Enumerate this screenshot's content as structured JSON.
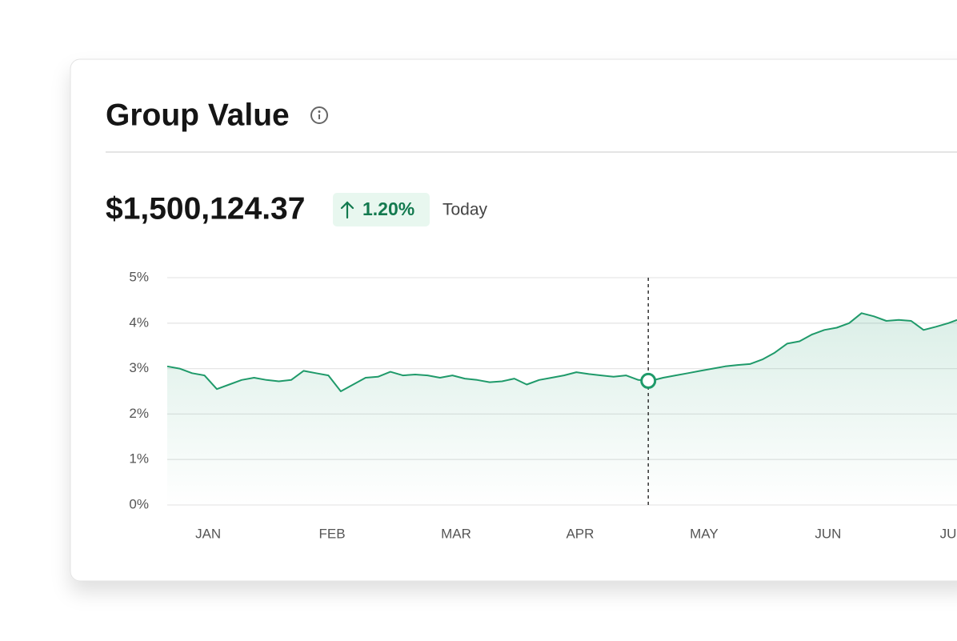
{
  "card": {
    "title": "Group Value",
    "value": "$1,500,124.37",
    "change": "1.20%",
    "period": "Today"
  },
  "chart_data": {
    "type": "area",
    "color": "#1f9a6a",
    "grid": true,
    "x": [
      0.67,
      0.77,
      0.87,
      0.97,
      1.07,
      1.17,
      1.27,
      1.37,
      1.47,
      1.57,
      1.67,
      1.77,
      1.87,
      1.97,
      2.07,
      2.17,
      2.27,
      2.37,
      2.47,
      2.57,
      2.67,
      2.77,
      2.87,
      2.97,
      3.07,
      3.17,
      3.27,
      3.37,
      3.47,
      3.57,
      3.67,
      3.77,
      3.87,
      3.97,
      4.07,
      4.17,
      4.27,
      4.37,
      4.47,
      4.57,
      4.67,
      4.77,
      4.87,
      4.97,
      5.07,
      5.17,
      5.27,
      5.37,
      5.47,
      5.57,
      5.67,
      5.77,
      5.87,
      5.97,
      6.07,
      6.17,
      6.27,
      6.37,
      6.47,
      6.57,
      6.67,
      6.77,
      6.87,
      6.97,
      7.04
    ],
    "values": [
      3.05,
      3.0,
      2.9,
      2.85,
      2.55,
      2.65,
      2.75,
      2.8,
      2.75,
      2.72,
      2.75,
      2.95,
      2.9,
      2.85,
      2.5,
      2.65,
      2.8,
      2.82,
      2.93,
      2.85,
      2.87,
      2.85,
      2.8,
      2.85,
      2.78,
      2.75,
      2.7,
      2.72,
      2.78,
      2.65,
      2.75,
      2.8,
      2.85,
      2.92,
      2.88,
      2.85,
      2.82,
      2.85,
      2.75,
      2.73,
      2.8,
      2.85,
      2.9,
      2.95,
      3.0,
      3.05,
      3.08,
      3.1,
      3.2,
      3.35,
      3.55,
      3.6,
      3.75,
      3.85,
      3.9,
      4.0,
      4.22,
      4.15,
      4.05,
      4.07,
      4.05,
      3.85,
      3.92,
      4.0,
      4.07
    ],
    "highlight": {
      "x": 4.55,
      "value": 2.73
    },
    "xlim": [
      0.67,
      7.04
    ],
    "ylim": [
      0,
      5
    ],
    "xticks": [
      {
        "value": 1,
        "label": "JAN"
      },
      {
        "value": 2,
        "label": "FEB"
      },
      {
        "value": 3,
        "label": "MAR"
      },
      {
        "value": 4,
        "label": "APR"
      },
      {
        "value": 5,
        "label": "MAY"
      },
      {
        "value": 6,
        "label": "JUN"
      },
      {
        "value": 7,
        "label": "JUL"
      }
    ],
    "yticks": [
      {
        "value": 0,
        "label": "0%"
      },
      {
        "value": 1,
        "label": "1%"
      },
      {
        "value": 2,
        "label": "2%"
      },
      {
        "value": 3,
        "label": "3%"
      },
      {
        "value": 4,
        "label": "4%"
      },
      {
        "value": 5,
        "label": "5%"
      }
    ]
  }
}
